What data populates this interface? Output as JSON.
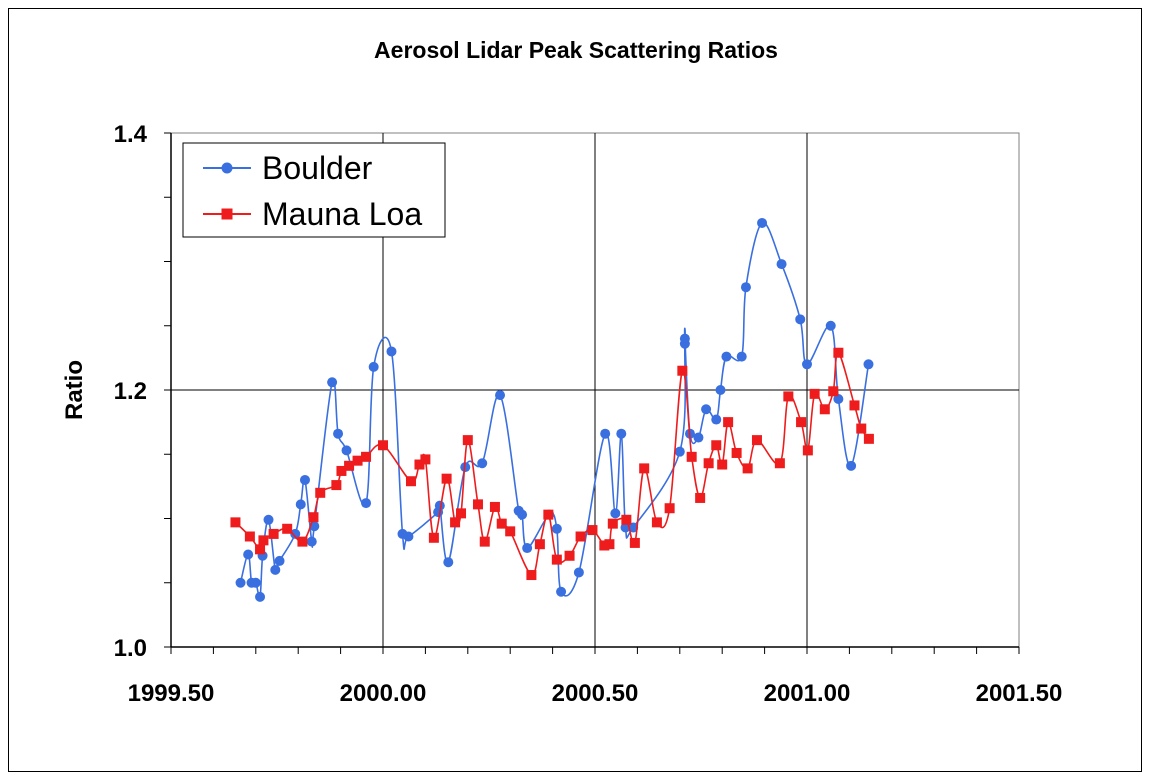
{
  "chart_data": {
    "type": "line",
    "title": "Aerosol Lidar Peak Scattering Ratios",
    "xlabel": "",
    "ylabel": "Ratio",
    "xlim": [
      1999.5,
      2001.5
    ],
    "ylim": [
      1.0,
      1.4
    ],
    "x_ticks": [
      1999.5,
      2000.0,
      2000.5,
      2001.0,
      2001.5
    ],
    "x_tick_labels": [
      "1999.50",
      "2000.00",
      "2000.50",
      "2001.00",
      "2001.50"
    ],
    "x_minor_step": 0.1,
    "y_ticks": [
      1.0,
      1.2,
      1.4
    ],
    "y_tick_labels": [
      "1.0",
      "1.2",
      "1.4"
    ],
    "y_minor_step": 0.05,
    "grid": "major",
    "legend_position": "top-left",
    "series": [
      {
        "name": "Boulder",
        "color": "#3A6FE0",
        "marker": "circle",
        "points": [
          [
            1999.664,
            1.05
          ],
          [
            1999.682,
            1.072
          ],
          [
            1999.69,
            1.05
          ],
          [
            1999.7,
            1.05
          ],
          [
            1999.71,
            1.039
          ],
          [
            1999.716,
            1.071
          ],
          [
            1999.73,
            1.099
          ],
          [
            1999.746,
            1.06
          ],
          [
            1999.756,
            1.067
          ],
          [
            1999.793,
            1.088
          ],
          [
            1999.806,
            1.111
          ],
          [
            1999.816,
            1.13
          ],
          [
            1999.832,
            1.082
          ],
          [
            1999.838,
            1.094
          ],
          [
            1999.88,
            1.206
          ],
          [
            1999.894,
            1.166
          ],
          [
            1999.914,
            1.153
          ],
          [
            1999.96,
            1.112
          ],
          [
            1999.978,
            1.218
          ],
          [
            2000.02,
            1.23
          ],
          [
            2000.046,
            1.088
          ],
          [
            2000.06,
            1.086
          ],
          [
            2000.13,
            1.105
          ],
          [
            2000.134,
            1.11
          ],
          [
            2000.154,
            1.066
          ],
          [
            2000.194,
            1.14
          ],
          [
            2000.234,
            1.143
          ],
          [
            2000.276,
            1.196
          ],
          [
            2000.32,
            1.106
          ],
          [
            2000.328,
            1.103
          ],
          [
            2000.34,
            1.077
          ],
          [
            2000.392,
            1.103
          ],
          [
            2000.41,
            1.092
          ],
          [
            2000.42,
            1.043
          ],
          [
            2000.462,
            1.058
          ],
          [
            2000.524,
            1.166
          ],
          [
            2000.548,
            1.104
          ],
          [
            2000.562,
            1.166
          ],
          [
            2000.572,
            1.093
          ],
          [
            2000.59,
            1.093
          ],
          [
            2000.7,
            1.152
          ],
          [
            2000.712,
            1.236
          ],
          [
            2000.712,
            1.24
          ],
          [
            2000.724,
            1.166
          ],
          [
            2000.744,
            1.163
          ],
          [
            2000.762,
            1.185
          ],
          [
            2000.786,
            1.177
          ],
          [
            2000.796,
            1.2
          ],
          [
            2000.81,
            1.226
          ],
          [
            2000.846,
            1.226
          ],
          [
            2000.856,
            1.28
          ],
          [
            2000.894,
            1.33
          ],
          [
            2000.94,
            1.298
          ],
          [
            2000.984,
            1.255
          ],
          [
            2001.0,
            1.22
          ],
          [
            2001.056,
            1.25
          ],
          [
            2001.074,
            1.193
          ],
          [
            2001.104,
            1.141
          ],
          [
            2001.145,
            1.22
          ]
        ]
      },
      {
        "name": "Mauna Loa",
        "color": "#EE1C1C",
        "marker": "square",
        "points": [
          [
            1999.652,
            1.097
          ],
          [
            1999.686,
            1.086
          ],
          [
            1999.71,
            1.076
          ],
          [
            1999.718,
            1.083
          ],
          [
            1999.742,
            1.088
          ],
          [
            1999.774,
            1.092
          ],
          [
            1999.81,
            1.082
          ],
          [
            1999.836,
            1.101
          ],
          [
            1999.852,
            1.12
          ],
          [
            1999.89,
            1.126
          ],
          [
            1999.902,
            1.137
          ],
          [
            1999.92,
            1.141
          ],
          [
            1999.94,
            1.145
          ],
          [
            1999.96,
            1.148
          ],
          [
            2000.0,
            1.157
          ],
          [
            2000.066,
            1.129
          ],
          [
            2000.086,
            1.142
          ],
          [
            2000.1,
            1.146
          ],
          [
            2000.12,
            1.085
          ],
          [
            2000.15,
            1.131
          ],
          [
            2000.17,
            1.097
          ],
          [
            2000.184,
            1.104
          ],
          [
            2000.2,
            1.161
          ],
          [
            2000.224,
            1.111
          ],
          [
            2000.24,
            1.082
          ],
          [
            2000.264,
            1.109
          ],
          [
            2000.28,
            1.096
          ],
          [
            2000.3,
            1.09
          ],
          [
            2000.35,
            1.056
          ],
          [
            2000.37,
            1.08
          ],
          [
            2000.39,
            1.103
          ],
          [
            2000.41,
            1.068
          ],
          [
            2000.44,
            1.071
          ],
          [
            2000.466,
            1.086
          ],
          [
            2000.494,
            1.091
          ],
          [
            2000.522,
            1.079
          ],
          [
            2000.534,
            1.08
          ],
          [
            2000.542,
            1.096
          ],
          [
            2000.574,
            1.099
          ],
          [
            2000.594,
            1.081
          ],
          [
            2000.616,
            1.139
          ],
          [
            2000.646,
            1.097
          ],
          [
            2000.676,
            1.108
          ],
          [
            2000.706,
            1.215
          ],
          [
            2000.728,
            1.148
          ],
          [
            2000.748,
            1.116
          ],
          [
            2000.768,
            1.143
          ],
          [
            2000.786,
            1.157
          ],
          [
            2000.8,
            1.142
          ],
          [
            2000.814,
            1.175
          ],
          [
            2000.834,
            1.151
          ],
          [
            2000.86,
            1.139
          ],
          [
            2000.882,
            1.161
          ],
          [
            2000.936,
            1.143
          ],
          [
            2000.956,
            1.195
          ],
          [
            2000.986,
            1.175
          ],
          [
            2001.002,
            1.153
          ],
          [
            2001.018,
            1.197
          ],
          [
            2001.042,
            1.185
          ],
          [
            2001.062,
            1.199
          ],
          [
            2001.074,
            1.229
          ],
          [
            2001.112,
            1.188
          ],
          [
            2001.128,
            1.17
          ],
          [
            2001.146,
            1.162
          ]
        ]
      }
    ]
  }
}
